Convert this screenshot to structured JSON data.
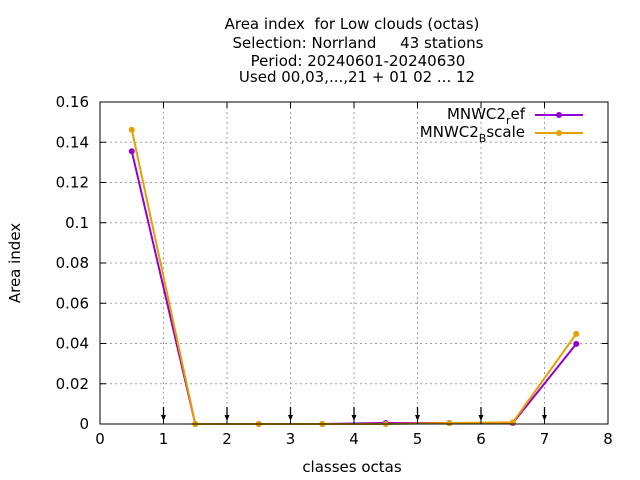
{
  "chart_data": {
    "type": "line",
    "title_lines": [
      "Area index  for Low clouds (octas)",
      "Selection: Norrland     43 stations",
      "Period: 20240601-20240630",
      "Used 00,03,...,21 + 01 02 ... 12"
    ],
    "xlabel": "classes octas",
    "ylabel": "Area index",
    "xlim": [
      0,
      8
    ],
    "ylim": [
      0,
      0.16
    ],
    "x_ticks": [
      "0",
      "1",
      "2",
      "3",
      "4",
      "5",
      "6",
      "7",
      "8"
    ],
    "y_ticks": [
      "0",
      "0.02",
      "0.04",
      "0.06",
      "0.08",
      "0.1",
      "0.12",
      "0.14",
      "0.16"
    ],
    "grid": true,
    "legend_position": "top-right",
    "x": [
      0.5,
      1.5,
      2.5,
      3.5,
      4.5,
      5.5,
      6.5,
      7.5
    ],
    "series": [
      {
        "name_base": "MNWC2",
        "name_sub": "r",
        "name_rest": "ef",
        "color": "#9400d3",
        "values": [
          0.1355,
          0.0,
          0.0,
          0.0,
          0.0005,
          0.0005,
          0.0005,
          0.0398
        ]
      },
      {
        "name_base": "MNWC2",
        "name_sub": "B",
        "name_rest": "scale",
        "color": "#e69f00",
        "values": [
          0.1462,
          0.0,
          0.0,
          0.0,
          0.0,
          0.0005,
          0.0008,
          0.0448
        ]
      }
    ],
    "markers_x": [
      1,
      2,
      3,
      4,
      5,
      6,
      7
    ]
  }
}
